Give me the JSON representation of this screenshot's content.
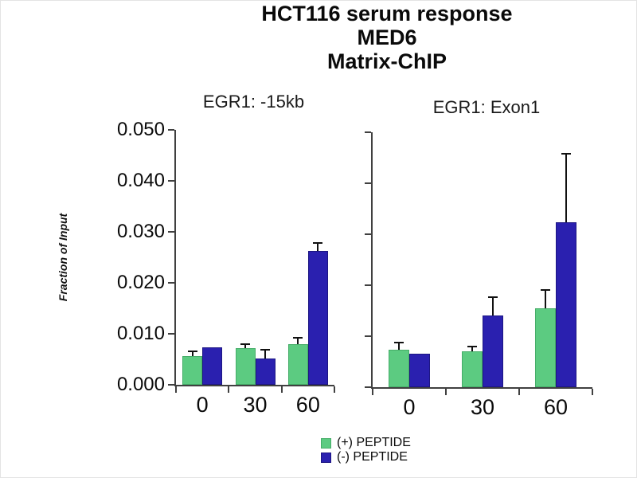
{
  "header": {
    "line1": "HCT116 serum response",
    "line2": "MED6",
    "line3": "Matrix-ChIP"
  },
  "y_axis": {
    "label": "Fraction of Input",
    "tick_labels": [
      "0.050",
      "0.040",
      "0.030",
      "0.020",
      "0.010",
      "0.000"
    ]
  },
  "legend": {
    "items": [
      {
        "label": "(+) PEPTIDE",
        "color": "#5ccb81",
        "border": "#45ad68"
      },
      {
        "label": "(-) PEPTIDE",
        "color": "#2a20af",
        "border": "#1d1683"
      }
    ]
  },
  "colors": {
    "green": "#5ccb81",
    "blue": "#2a20af",
    "axis": "#404040",
    "error_bar": "#111111"
  },
  "chart_data": [
    {
      "type": "bar",
      "title": "EGR1: -15kb",
      "categories": [
        "0",
        "30",
        "60"
      ],
      "ylabel": "Fraction of Input",
      "ylim": [
        0,
        0.05
      ],
      "ytick_step": 0.01,
      "grid": false,
      "legend_position": "bottom",
      "series": [
        {
          "name": "(+) PEPTIDE",
          "color": "#5ccb81",
          "border": "#45ad68",
          "values": [
            0.0057,
            0.0072,
            0.008
          ],
          "errors": [
            0.0009,
            0.0008,
            0.0012
          ]
        },
        {
          "name": "(-) PEPTIDE",
          "color": "#2a20af",
          "border": "#1d1683",
          "values": [
            0.0074,
            0.0052,
            0.0263
          ],
          "errors": [
            null,
            0.0017,
            0.0015
          ]
        }
      ]
    },
    {
      "type": "bar",
      "title": "EGR1: Exon1",
      "categories": [
        "0",
        "30",
        "60"
      ],
      "ylabel": "Fraction of Input",
      "ylim": [
        0,
        0.05
      ],
      "ytick_step": 0.01,
      "grid": false,
      "legend_position": "bottom",
      "series": [
        {
          "name": "(+) PEPTIDE",
          "color": "#5ccb81",
          "border": "#45ad68",
          "values": [
            0.0073,
            0.0071,
            0.0154
          ],
          "errors": [
            0.0014,
            0.0008,
            0.0036
          ]
        },
        {
          "name": "(-) PEPTIDE",
          "color": "#2a20af",
          "border": "#1d1683",
          "values": [
            0.0066,
            0.0141,
            0.0324
          ],
          "errors": [
            null,
            0.0035,
            0.0134
          ]
        }
      ]
    }
  ]
}
